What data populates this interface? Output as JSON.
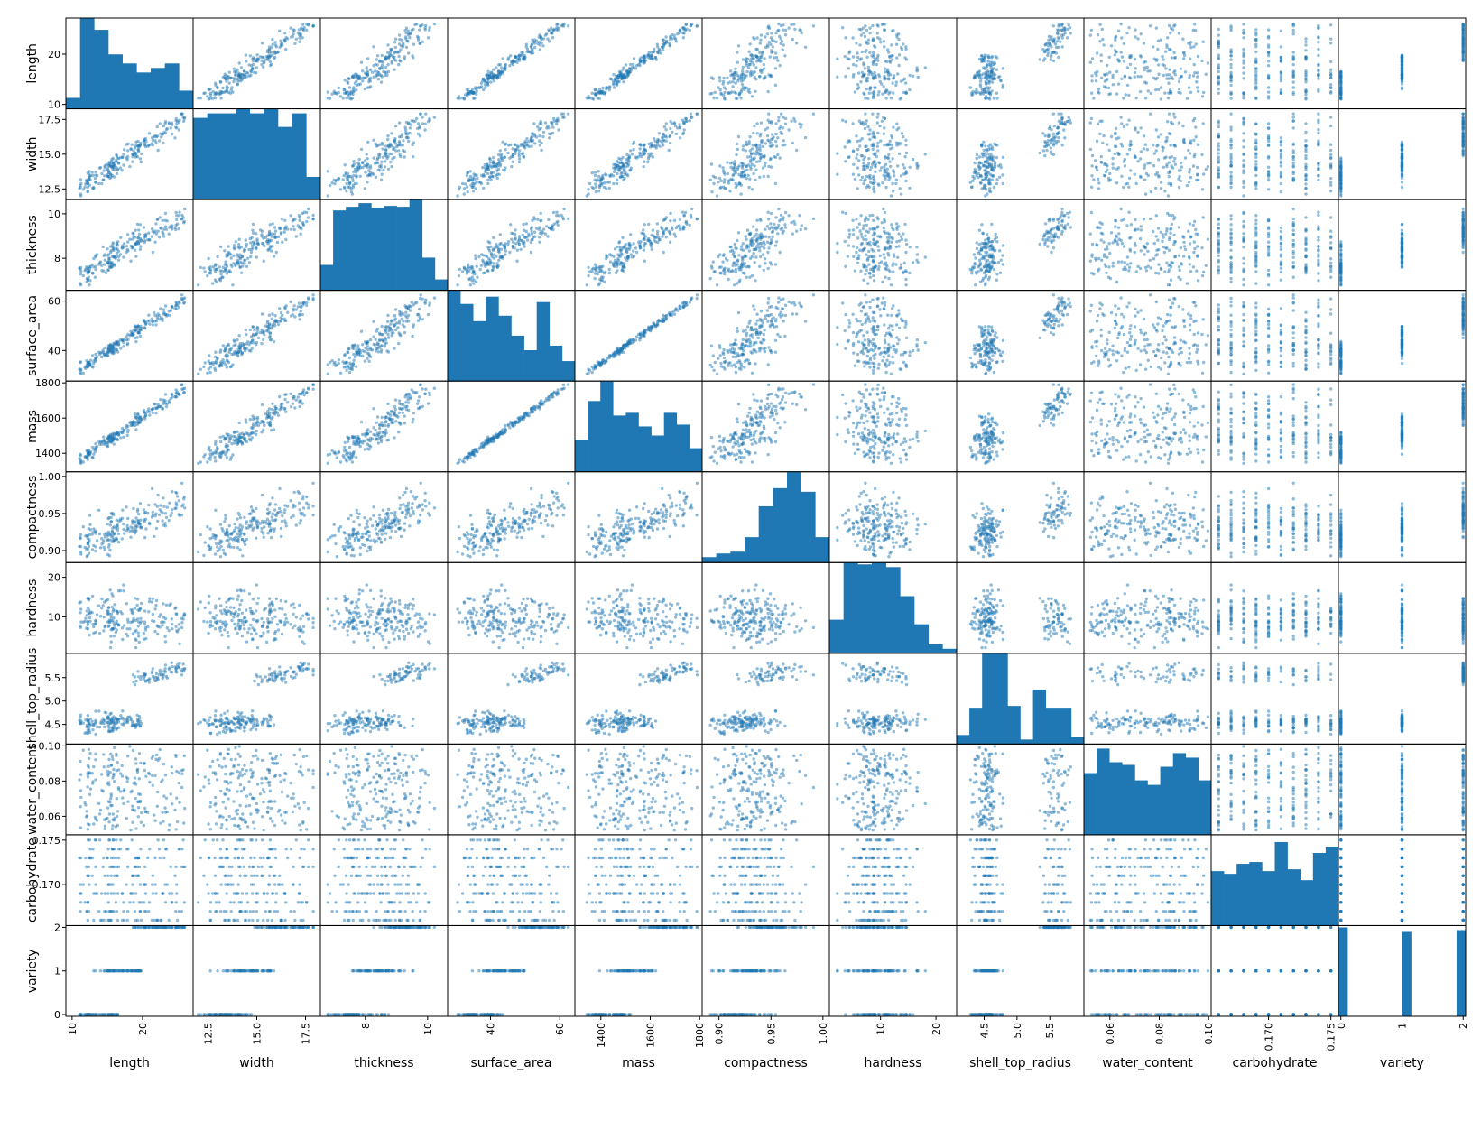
{
  "chart_data": {
    "type": "scatter",
    "title": "",
    "kind": "scatter_matrix",
    "diagonal": "histogram",
    "color": "#1f77b4",
    "point_alpha": 0.5,
    "grid": false,
    "variables": [
      "length",
      "width",
      "thickness",
      "surface_area",
      "mass",
      "compactness",
      "hardness",
      "shell_top_radius",
      "water_content",
      "carbohydrate",
      "variety"
    ],
    "axes": {
      "length": {
        "range": [
          9.3,
          27.0
        ],
        "ticks": [
          10,
          20
        ],
        "tick_labels": [
          "10",
          "20"
        ]
      },
      "width": {
        "range": [
          11.8,
          18.2
        ],
        "ticks": [
          12.5,
          15.0,
          17.5
        ],
        "tick_labels": [
          "12.5",
          "15.0",
          "17.5"
        ]
      },
      "thickness": {
        "range": [
          6.6,
          10.6
        ],
        "ticks": [
          8,
          10
        ],
        "tick_labels": [
          "8",
          "10"
        ]
      },
      "surface_area": {
        "range": [
          28.0,
          64.0
        ],
        "ticks": [
          40,
          60
        ],
        "tick_labels": [
          "40",
          "60"
        ]
      },
      "mass": {
        "range": [
          1300,
          1805
        ],
        "ticks": [
          1400,
          1600,
          1800
        ],
        "tick_labels": [
          "1400",
          "1600",
          "1800"
        ]
      },
      "compactness": {
        "range": [
          0.885,
          1.005
        ],
        "ticks": [
          0.9,
          0.95,
          1.0
        ],
        "tick_labels": [
          "0.90",
          "0.95",
          "1.00"
        ]
      },
      "hardness": {
        "range": [
          1.0,
          23.5
        ],
        "ticks": [
          10,
          20
        ],
        "tick_labels": [
          "10",
          "20"
        ]
      },
      "shell_top_radius": {
        "range": [
          4.1,
          6.0
        ],
        "ticks": [
          4.5,
          5.0,
          5.5
        ],
        "tick_labels": [
          "4.5",
          "5.0",
          "5.5"
        ]
      },
      "water_content": {
        "range": [
          0.05,
          0.1005
        ],
        "ticks": [
          0.06,
          0.08,
          0.1
        ],
        "tick_labels": [
          "0.06",
          "0.08",
          "0.10"
        ]
      },
      "carbohydrate": {
        "range": [
          0.1655,
          0.1755
        ],
        "ticks": [
          0.17,
          0.175
        ],
        "tick_labels": [
          "0.170",
          "0.175"
        ]
      },
      "variety": {
        "range": [
          -0.02,
          2.02
        ],
        "ticks": [
          0,
          1,
          2
        ],
        "tick_labels": [
          "0",
          "1",
          "2"
        ]
      }
    },
    "histograms": {
      "length": [
        0.12,
        1.0,
        0.87,
        0.6,
        0.5,
        0.4,
        0.45,
        0.5,
        0.2
      ],
      "width": [
        0.9,
        0.95,
        0.95,
        1.0,
        0.95,
        1.0,
        0.8,
        0.95,
        0.25
      ],
      "thickness": [
        0.28,
        0.88,
        0.92,
        0.96,
        0.91,
        0.93,
        0.92,
        1.0,
        0.36,
        0.12
      ],
      "surface_area": [
        1.0,
        0.85,
        0.66,
        0.93,
        0.72,
        0.5,
        0.34,
        0.87,
        0.39,
        0.22
      ],
      "mass": [
        0.35,
        0.78,
        1.0,
        0.62,
        0.65,
        0.5,
        0.4,
        0.65,
        0.52,
        0.26
      ],
      "compactness": [
        0.06,
        0.1,
        0.12,
        0.28,
        0.62,
        0.82,
        1.0,
        0.78,
        0.28
      ],
      "hardness": [
        0.37,
        1.0,
        0.98,
        1.0,
        0.95,
        0.63,
        0.32,
        0.1,
        0.05
      ],
      "shell_top_radius": [
        0.1,
        0.4,
        1.0,
        1.0,
        0.42,
        0.05,
        0.6,
        0.4,
        0.4,
        0.08
      ],
      "water_content": [
        0.68,
        0.95,
        0.8,
        0.77,
        0.6,
        0.55,
        0.75,
        0.9,
        0.85,
        0.6
      ],
      "carbohydrate": [
        0.6,
        0.57,
        0.68,
        0.7,
        0.6,
        0.92,
        0.62,
        0.5,
        0.8,
        0.87
      ],
      "variety": [
        0.98,
        0,
        0,
        0,
        0,
        0,
        0,
        0.93,
        0,
        0,
        0,
        0,
        0,
        0.95
      ]
    }
  }
}
